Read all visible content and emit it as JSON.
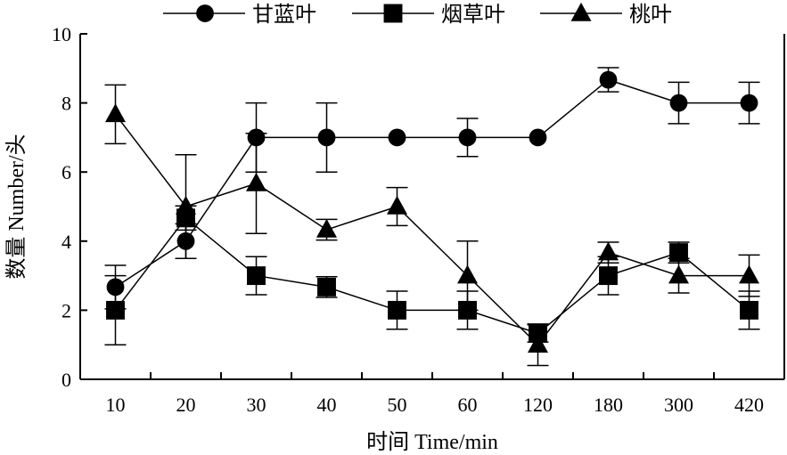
{
  "chart_data": {
    "type": "line",
    "title": "",
    "xlabel": "时间 Time/min",
    "ylabel": "数量 Number/头",
    "categories": [
      "10",
      "20",
      "30",
      "40",
      "50",
      "60",
      "120",
      "180",
      "300",
      "420"
    ],
    "ylim": [
      0,
      10
    ],
    "yticks": [
      "0",
      "2",
      "4",
      "6",
      "8",
      "10"
    ],
    "grid": false,
    "legend_position": "top",
    "series": [
      {
        "name": "甘蓝叶",
        "marker": "circle",
        "color": "#000000",
        "values": [
          2.67,
          4.0,
          7.0,
          7.0,
          7.0,
          7.0,
          7.0,
          8.67,
          8.0,
          8.0
        ],
        "errors": [
          0.63,
          0.5,
          1.0,
          1.0,
          0.0,
          0.55,
          0.0,
          0.35,
          0.6,
          0.6
        ]
      },
      {
        "name": "烟草叶",
        "marker": "square",
        "color": "#000000",
        "values": [
          2.0,
          4.67,
          3.0,
          2.67,
          2.0,
          2.0,
          1.33,
          3.0,
          3.67,
          2.0
        ],
        "errors": [
          1.0,
          0.35,
          0.55,
          0.3,
          0.55,
          0.55,
          0.25,
          0.55,
          0.3,
          0.55
        ]
      },
      {
        "name": "桃叶",
        "marker": "triangle",
        "color": "#000000",
        "values": [
          7.67,
          5.0,
          5.67,
          4.33,
          5.0,
          3.0,
          1.0,
          3.67,
          3.0,
          3.0
        ],
        "errors": [
          0.85,
          1.5,
          1.45,
          0.3,
          0.55,
          1.0,
          0.6,
          0.3,
          0.5,
          0.6
        ]
      }
    ]
  }
}
